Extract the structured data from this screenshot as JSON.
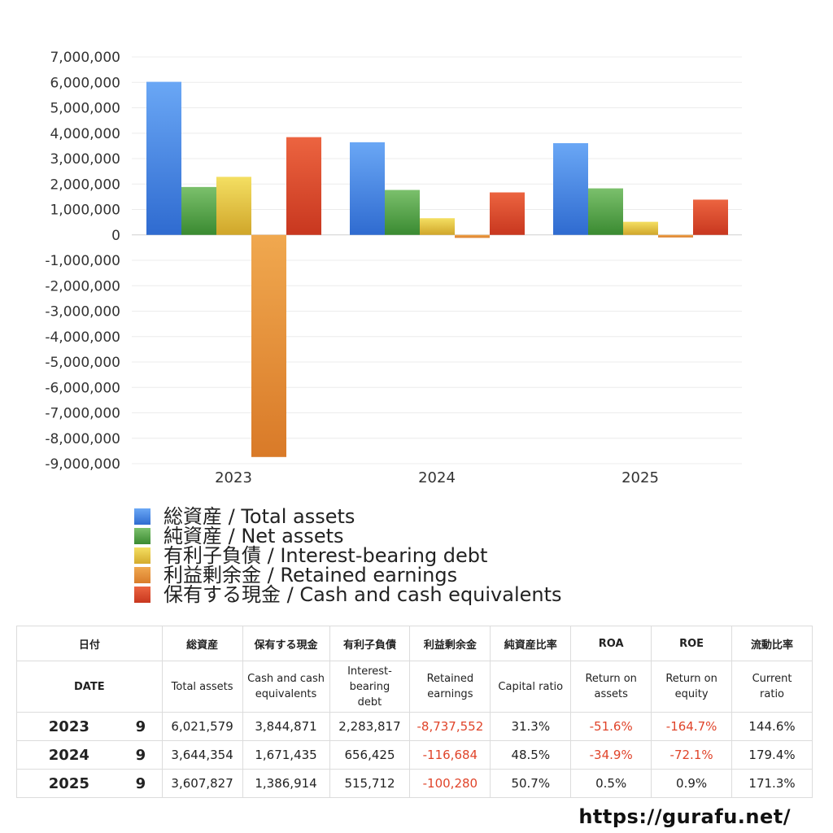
{
  "chart_data": {
    "type": "bar",
    "categories": [
      "2023",
      "2024",
      "2025"
    ],
    "ylim": [
      -9000000,
      7000000
    ],
    "y_ticks": [
      "7,000,000",
      "6,000,000",
      "5,000,000",
      "4,000,000",
      "3,000,000",
      "2,000,000",
      "1,000,000",
      "0",
      "-1,000,000",
      "-2,000,000",
      "-3,000,000",
      "-4,000,000",
      "-5,000,000",
      "-6,000,000",
      "-7,000,000",
      "-8,000,000",
      "-9,000,000"
    ],
    "grid": true,
    "legend_position": "bottom",
    "series": [
      {
        "name": "総資産 / Total assets",
        "color": "#3d7fe0",
        "values": [
          6021579,
          3644354,
          3607827
        ]
      },
      {
        "name": "純資産 / Net assets",
        "color": "#4a9e3f",
        "values": [
          1884000,
          1768000,
          1830000
        ]
      },
      {
        "name": "有利子負債 / Interest-bearing debt",
        "color": "#e6c43a",
        "values": [
          2283817,
          656425,
          515712
        ]
      },
      {
        "name": "利益剰余金 / Retained earnings",
        "color": "#e38a33",
        "values": [
          -8737552,
          -116684,
          -100280
        ]
      },
      {
        "name": "保有する現金 /  Cash and cash equivalents",
        "color": "#d9452a",
        "values": [
          3844871,
          1671435,
          1386914
        ]
      }
    ]
  },
  "table": {
    "header_jp": [
      "日付",
      "総資産",
      "保有する現金",
      "有利子負債",
      "利益剰余金",
      "純資産比率",
      "ROA",
      "ROE",
      "流動比率"
    ],
    "header_en": [
      "DATE",
      "Total assets",
      "Cash and cash equivalents",
      "Interest-bearing debt",
      "Retained earnings",
      "Capital ratio",
      "Return on assets",
      "Return on equity",
      "Current ratio"
    ],
    "rows": [
      {
        "year": "2023",
        "month": "9",
        "total_assets": "6,021,579",
        "cash": "3,844,871",
        "debt": "2,283,817",
        "retained": "-8,737,552",
        "capital_ratio": "31.3%",
        "roa": "-51.6%",
        "roe": "-164.7%",
        "current_ratio": "144.6%"
      },
      {
        "year": "2024",
        "month": "9",
        "total_assets": "3,644,354",
        "cash": "1,671,435",
        "debt": "656,425",
        "retained": "-116,684",
        "capital_ratio": "48.5%",
        "roa": "-34.9%",
        "roe": "-72.1%",
        "current_ratio": "179.4%"
      },
      {
        "year": "2025",
        "month": "9",
        "total_assets": "3,607,827",
        "cash": "1,386,914",
        "debt": "515,712",
        "retained": "-100,280",
        "capital_ratio": "50.7%",
        "roa": "0.5%",
        "roe": "0.9%",
        "current_ratio": "171.3%"
      }
    ]
  },
  "footer": {
    "site": "https://gurafu.net/"
  }
}
